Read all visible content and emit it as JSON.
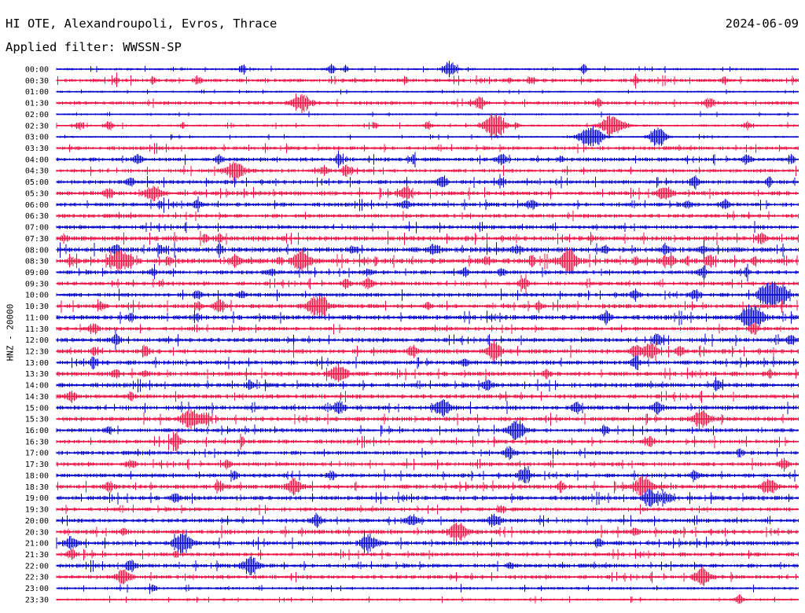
{
  "header": {
    "station": "HI OTE, Alexandroupoli, Evros, Thrace",
    "date": "2024-06-09",
    "filter": "Applied filter: WWSSN-SP"
  },
  "channel_label": "HNZ - 20000",
  "chart_data": {
    "type": "line",
    "title": "HI OTE, Alexandroupoli, Evros, Thrace",
    "subtitle": "Applied filter: WWSSN-SP",
    "ylabel": "HNZ - 20000",
    "xlabel": "",
    "grid": false,
    "row_colors": [
      "#0000cc",
      "#ee1144"
    ],
    "row_labels": [
      "00:00",
      "00:30",
      "01:00",
      "01:30",
      "02:00",
      "02:30",
      "03:00",
      "03:30",
      "04:00",
      "04:30",
      "05:00",
      "05:30",
      "06:00",
      "06:30",
      "07:00",
      "07:30",
      "08:00",
      "08:30",
      "09:00",
      "09:30",
      "10:00",
      "10:30",
      "11:00",
      "11:30",
      "12:00",
      "12:30",
      "13:00",
      "13:30",
      "14:00",
      "14:30",
      "15:00",
      "15:30",
      "16:00",
      "16:30",
      "17:00",
      "17:30",
      "18:00",
      "18:30",
      "19:00",
      "19:30",
      "20:00",
      "20:30",
      "21:00",
      "21:30",
      "22:00",
      "22:30",
      "23:00",
      "23:30"
    ],
    "row_noise": [
      0.6,
      0.9,
      0.5,
      0.9,
      0.5,
      0.6,
      0.5,
      0.9,
      1.0,
      0.9,
      1.0,
      1.1,
      1.0,
      1.0,
      1.0,
      1.2,
      1.3,
      1.3,
      1.0,
      1.0,
      1.0,
      1.1,
      1.2,
      1.0,
      1.1,
      1.1,
      1.1,
      1.1,
      1.1,
      1.1,
      1.1,
      1.1,
      1.0,
      1.0,
      1.0,
      1.0,
      1.0,
      1.1,
      1.1,
      1.0,
      1.0,
      1.1,
      1.1,
      1.0,
      1.0,
      1.0,
      0.7,
      0.6
    ],
    "events": [
      [
        0.53,
        10,
        6
      ],
      [
        0.71,
        6,
        3
      ],
      [
        0.25,
        6,
        3
      ],
      [
        0.37,
        6,
        3
      ],
      [
        0.39,
        6,
        2
      ],
      [
        0.19,
        5,
        3
      ],
      [
        0.08,
        5,
        2
      ],
      [
        0.13,
        5,
        2
      ],
      [
        0.47,
        5,
        2
      ],
      [
        0.61,
        5,
        2
      ],
      [
        0.64,
        5,
        3
      ],
      [
        0.78,
        5,
        2
      ],
      [
        0.9,
        5,
        2
      ],
      [
        0.33,
        11,
        8
      ],
      [
        0.57,
        8,
        4
      ],
      [
        0.88,
        7,
        4
      ],
      [
        0.73,
        6,
        3
      ],
      [
        0.03,
        5,
        3
      ],
      [
        0.07,
        6,
        4
      ],
      [
        0.17,
        4,
        2
      ],
      [
        0.43,
        4,
        2
      ],
      [
        0.5,
        5,
        3
      ],
      [
        0.62,
        5,
        2
      ],
      [
        0.93,
        5,
        3
      ],
      [
        0.59,
        16,
        9
      ],
      [
        0.75,
        14,
        10
      ],
      [
        0.72,
        14,
        10
      ],
      [
        0.81,
        13,
        7
      ],
      [
        0.11,
        6,
        4
      ],
      [
        0.22,
        6,
        3
      ],
      [
        0.38,
        6,
        3
      ],
      [
        0.48,
        5,
        3
      ],
      [
        0.6,
        7,
        4
      ],
      [
        0.68,
        5,
        3
      ],
      [
        0.93,
        6,
        4
      ],
      [
        0.99,
        6,
        3
      ],
      [
        0.24,
        11,
        9
      ],
      [
        0.36,
        7,
        4
      ],
      [
        0.39,
        7,
        4
      ],
      [
        0.1,
        6,
        3
      ],
      [
        0.52,
        8,
        4
      ],
      [
        0.6,
        6,
        3
      ],
      [
        0.86,
        7,
        4
      ],
      [
        0.96,
        6,
        3
      ],
      [
        0.07,
        6,
        4
      ],
      [
        0.13,
        10,
        7
      ],
      [
        0.47,
        9,
        5
      ],
      [
        0.82,
        8,
        6
      ],
      [
        0.14,
        5,
        3
      ],
      [
        0.19,
        6,
        4
      ],
      [
        0.47,
        5,
        4
      ],
      [
        0.64,
        5,
        4
      ],
      [
        0.85,
        5,
        3
      ],
      [
        0.9,
        6,
        4
      ],
      [
        0.01,
        5,
        3
      ],
      [
        0.2,
        5,
        3
      ],
      [
        0.22,
        5,
        3
      ],
      [
        0.72,
        4,
        2
      ],
      [
        0.95,
        6,
        4
      ],
      [
        0.08,
        6,
        4
      ],
      [
        0.14,
        5,
        3
      ],
      [
        0.22,
        6,
        3
      ],
      [
        0.4,
        5,
        3
      ],
      [
        0.51,
        6,
        4
      ],
      [
        0.62,
        6,
        4
      ],
      [
        0.74,
        5,
        3
      ],
      [
        0.82,
        6,
        3
      ],
      [
        0.87,
        5,
        3
      ],
      [
        0.1,
        6,
        3
      ],
      [
        0.15,
        5,
        3
      ],
      [
        0.24,
        8,
        4
      ],
      [
        0.3,
        5,
        3
      ],
      [
        0.43,
        4,
        2
      ],
      [
        0.64,
        6,
        3
      ],
      [
        0.69,
        11,
        7
      ],
      [
        0.78,
        5,
        2
      ],
      [
        0.83,
        6,
        3
      ],
      [
        0.85,
        4,
        2
      ],
      [
        0.88,
        7,
        4
      ],
      [
        0.02,
        5,
        3
      ],
      [
        0.08,
        10,
        7
      ],
      [
        0.09,
        8,
        5
      ],
      [
        0.33,
        14,
        7
      ],
      [
        0.58,
        5,
        3
      ],
      [
        0.69,
        7,
        5
      ],
      [
        0.82,
        5,
        3
      ],
      [
        0.94,
        5,
        3
      ],
      [
        0.13,
        5,
        3
      ],
      [
        0.29,
        5,
        3
      ],
      [
        0.42,
        5,
        3
      ],
      [
        0.55,
        5,
        3
      ],
      [
        0.6,
        5,
        3
      ],
      [
        0.87,
        7,
        4
      ],
      [
        0.93,
        5,
        3
      ],
      [
        0.14,
        4,
        2
      ],
      [
        0.39,
        6,
        3
      ],
      [
        0.42,
        7,
        4
      ],
      [
        0.63,
        7,
        4
      ],
      [
        0.19,
        6,
        3
      ],
      [
        0.25,
        5,
        3
      ],
      [
        0.78,
        6,
        4
      ],
      [
        0.86,
        7,
        4
      ],
      [
        0.95,
        6,
        4
      ],
      [
        0.96,
        13,
        7
      ],
      [
        0.97,
        10,
        6
      ],
      [
        0.98,
        8,
        4
      ],
      [
        0.06,
        5,
        3
      ],
      [
        0.19,
        5,
        3
      ],
      [
        0.22,
        8,
        5
      ],
      [
        0.35,
        12,
        8
      ],
      [
        0.36,
        7,
        4
      ],
      [
        0.5,
        5,
        3
      ],
      [
        0.65,
        5,
        3
      ],
      [
        0.1,
        5,
        3
      ],
      [
        0.19,
        5,
        3
      ],
      [
        0.74,
        7,
        4
      ],
      [
        0.93,
        8,
        5
      ],
      [
        0.94,
        13,
        8
      ],
      [
        0.05,
        6,
        4
      ],
      [
        0.94,
        6,
        4
      ]
    ]
  }
}
